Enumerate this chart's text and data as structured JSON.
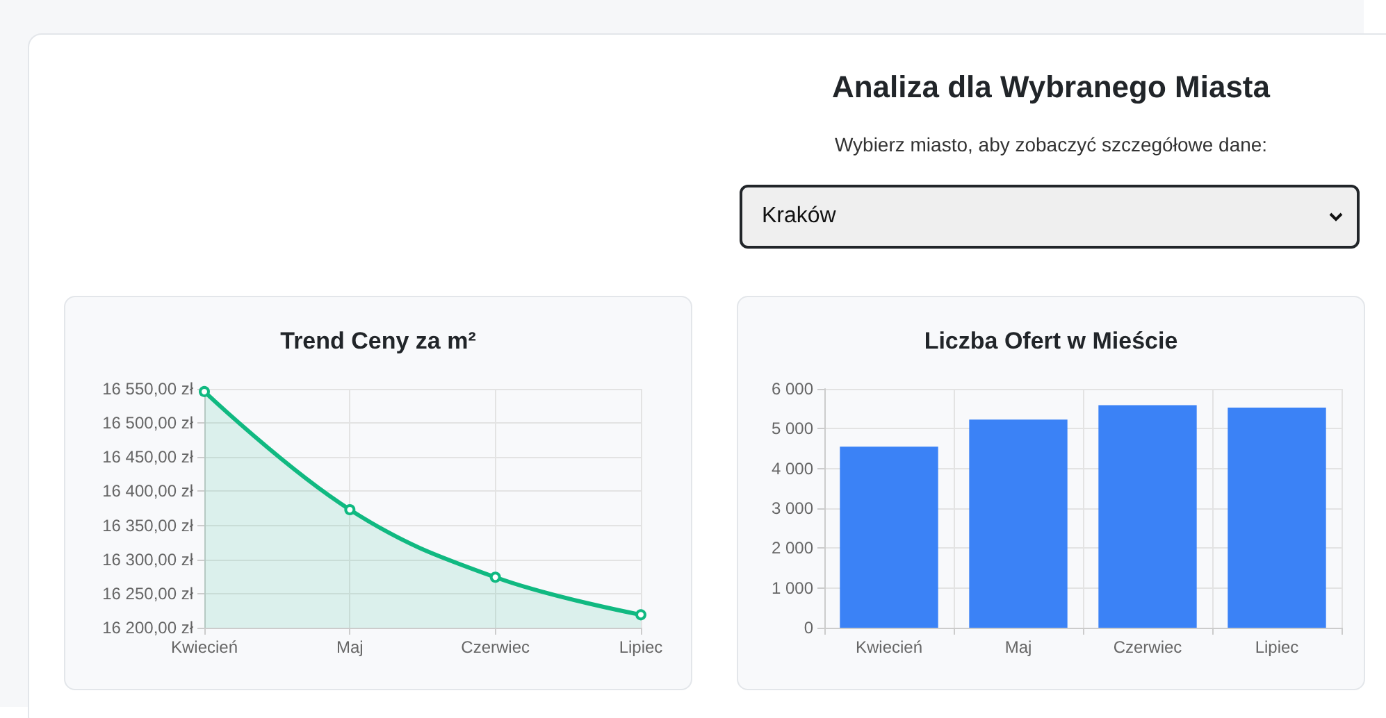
{
  "chart_data": [
    {
      "type": "other",
      "title": "Analiza dla Wybranego Miasta",
      "annotations": [
        "Wybierz miasto, aby zobaczyć szczegółowe dane:",
        "Kraków"
      ]
    },
    {
      "type": "area",
      "title": "Trend Ceny za m²",
      "categories": [
        "Kwiecień",
        "Maj",
        "Czerwiec",
        "Lipiec"
      ],
      "series": [
        {
          "color": "#10b981",
          "values": [
            16546,
            16373,
            16274,
            16219
          ]
        }
      ],
      "ylim": [
        16200,
        16550
      ],
      "yticks": [
        {
          "value": 16200,
          "label": "16 200,00 zł"
        },
        {
          "value": 16250,
          "label": "16 250,00 zł"
        },
        {
          "value": 16300,
          "label": "16 300,00 zł"
        },
        {
          "value": 16350,
          "label": "16 350,00 zł"
        },
        {
          "value": 16400,
          "label": "16 400,00 zł"
        },
        {
          "value": 16450,
          "label": "16 450,00 zł"
        },
        {
          "value": 16500,
          "label": "16 500,00 zł"
        },
        {
          "value": 16550,
          "label": "16 550,00 zł"
        }
      ],
      "grid": true,
      "marker": "circle"
    },
    {
      "type": "bar",
      "title": "Liczba Ofert w Mieście",
      "categories": [
        "Kwiecień",
        "Maj",
        "Czerwiec",
        "Lipiec"
      ],
      "series": [
        {
          "color": "#3b82f6",
          "values": [
            4550,
            5230,
            5590,
            5530
          ]
        }
      ],
      "ylim": [
        0,
        6000
      ],
      "yticks": [
        {
          "value": 0,
          "label": "0"
        },
        {
          "value": 1000,
          "label": "1 000"
        },
        {
          "value": 2000,
          "label": "2 000"
        },
        {
          "value": 3000,
          "label": "3 000"
        },
        {
          "value": 4000,
          "label": "4 000"
        },
        {
          "value": 5000,
          "label": "5 000"
        },
        {
          "value": 6000,
          "label": "6 000"
        }
      ],
      "grid": true
    }
  ]
}
